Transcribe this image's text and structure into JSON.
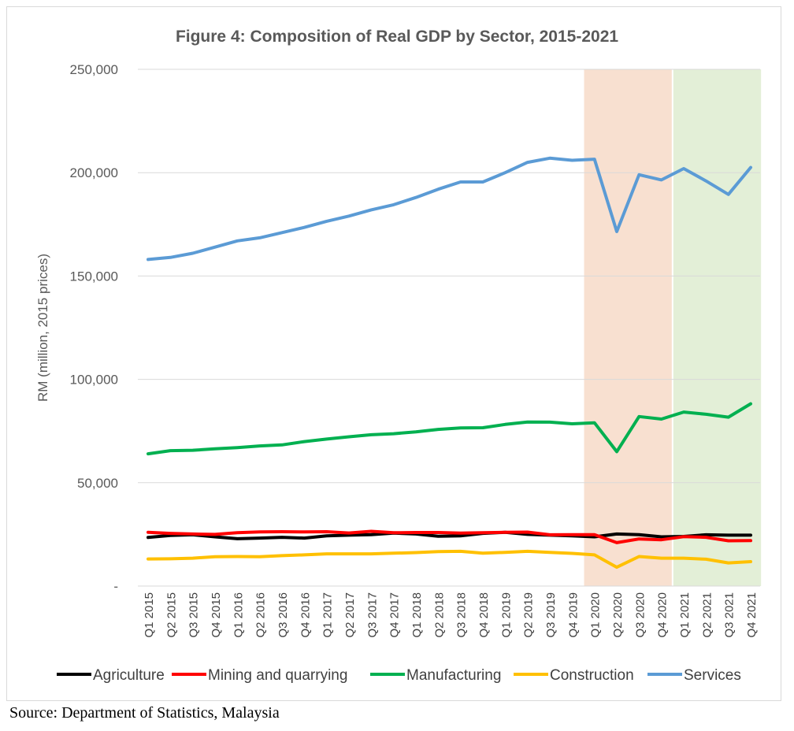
{
  "source_note": "Source: Department of Statistics, Malaysia",
  "chart_data": {
    "type": "line",
    "title": "Figure 4: Composition of Real GDP by Sector, 2015-2021",
    "xlabel": "",
    "ylabel": "RM (million, 2015 prices)",
    "ylim": [
      0,
      250000
    ],
    "yticks": [
      0,
      50000,
      100000,
      150000,
      200000,
      250000
    ],
    "ytick_labels": [
      "-",
      "50,000",
      "100,000",
      "150,000",
      "200,000",
      "250,000"
    ],
    "grid": true,
    "legend_position": "bottom",
    "categories": [
      "Q1 2015",
      "Q2 2015",
      "Q3 2015",
      "Q4 2015",
      "Q1 2016",
      "Q2 2016",
      "Q3 2016",
      "Q4 2016",
      "Q1 2017",
      "Q2 2017",
      "Q3 2017",
      "Q4 2017",
      "Q1 2018",
      "Q2 2018",
      "Q3 2018",
      "Q4 2018",
      "Q1 2019",
      "Q2 2019",
      "Q3 2019",
      "Q4 2019",
      "Q1 2020",
      "Q2 2020",
      "Q3 2020",
      "Q4 2020",
      "Q1 2021",
      "Q2 2021",
      "Q3 2021",
      "Q4 2021"
    ],
    "shaded_ranges": [
      {
        "from": "Q1 2020",
        "to": "Q4 2020",
        "color": "#f8e0d0"
      },
      {
        "from": "Q1 2021",
        "to": "Q4 2021",
        "color": "#e3efd7"
      }
    ],
    "series": [
      {
        "name": "Agriculture",
        "color": "#000000",
        "values": [
          23500,
          24500,
          24800,
          23800,
          22900,
          23200,
          23600,
          23200,
          24300,
          24600,
          24900,
          25600,
          25200,
          24100,
          24300,
          25500,
          26000,
          25000,
          24600,
          24300,
          23800,
          25200,
          24900,
          23800,
          24000,
          24800,
          24600,
          24600
        ]
      },
      {
        "name": "Mining and quarrying",
        "color": "#ff0000",
        "values": [
          26000,
          25500,
          25200,
          25000,
          25800,
          26200,
          26300,
          26200,
          26300,
          25700,
          26500,
          25800,
          25900,
          25900,
          25600,
          25800,
          26000,
          26100,
          24800,
          24900,
          24900,
          21000,
          22800,
          22400,
          23900,
          23600,
          21900,
          22000
        ]
      },
      {
        "name": "Manufacturing",
        "color": "#00b050",
        "values": [
          64000,
          65500,
          65700,
          66400,
          67000,
          67800,
          68300,
          69900,
          71100,
          72200,
          73200,
          73700,
          74600,
          75800,
          76500,
          76600,
          78200,
          79400,
          79300,
          78500,
          79000,
          65000,
          82000,
          80800,
          84200,
          83100,
          81700,
          88200
        ]
      },
      {
        "name": "Construction",
        "color": "#ffc000",
        "values": [
          13100,
          13200,
          13500,
          14200,
          14300,
          14200,
          14700,
          15100,
          15600,
          15600,
          15600,
          15900,
          16200,
          16700,
          16800,
          15900,
          16300,
          16800,
          16300,
          15800,
          15100,
          9100,
          14300,
          13500,
          13500,
          13000,
          11200,
          11800
        ]
      },
      {
        "name": "Services",
        "color": "#5b9bd5",
        "values": [
          158000,
          159000,
          161000,
          164000,
          167000,
          168500,
          171000,
          173500,
          176500,
          179000,
          182000,
          184500,
          188000,
          192000,
          195500,
          195500,
          200000,
          205000,
          207000,
          206000,
          206500,
          171500,
          199000,
          196500,
          202000,
          196000,
          189500,
          202500
        ]
      }
    ]
  }
}
